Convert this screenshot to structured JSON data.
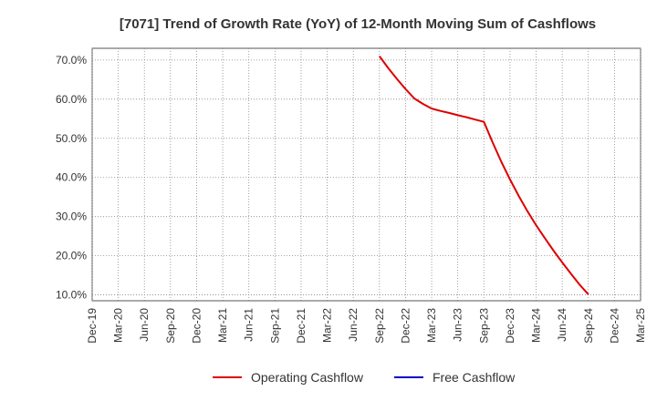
{
  "chart_data": {
    "type": "line",
    "title": "[7071]  Trend of Growth Rate (YoY) of 12-Month Moving Sum of Cashflows",
    "xlabel": "",
    "ylabel": "",
    "x_ticks": [
      "Dec-19",
      "Mar-20",
      "Jun-20",
      "Sep-20",
      "Dec-20",
      "Mar-21",
      "Jun-21",
      "Sep-21",
      "Dec-21",
      "Mar-22",
      "Jun-22",
      "Sep-22",
      "Dec-22",
      "Mar-23",
      "Jun-23",
      "Sep-23",
      "Dec-23",
      "Mar-24",
      "Jun-24",
      "Sep-24",
      "Dec-24",
      "Mar-25"
    ],
    "y_ticks": [
      "10.0%",
      "20.0%",
      "30.0%",
      "40.0%",
      "50.0%",
      "60.0%",
      "70.0%"
    ],
    "y_tick_values": [
      10,
      20,
      30,
      40,
      50,
      60,
      70
    ],
    "ylim": [
      8.5,
      73
    ],
    "xlim": [
      "Dec-19",
      "Mar-25"
    ],
    "grid": true,
    "legend_position": "bottom",
    "series": [
      {
        "name": "Operating Cashflow",
        "color": "#dd0000",
        "points": [
          [
            "Sep-22",
            71.0
          ],
          [
            "Oct-22",
            68.0
          ],
          [
            "Nov-22",
            65.2
          ],
          [
            "Dec-22",
            62.6
          ],
          [
            "Jan-23",
            60.2
          ],
          [
            "Feb-23",
            58.8
          ],
          [
            "Mar-23",
            57.6
          ],
          [
            "Apr-23",
            57.0
          ],
          [
            "May-23",
            56.5
          ],
          [
            "Jun-23",
            55.9
          ],
          [
            "Jul-23",
            55.4
          ],
          [
            "Aug-23",
            54.8
          ],
          [
            "Sep-23",
            54.2
          ],
          [
            "Oct-23",
            49.0
          ],
          [
            "Nov-23",
            44.0
          ],
          [
            "Dec-23",
            39.5
          ],
          [
            "Jan-24",
            35.3
          ],
          [
            "Feb-24",
            31.4
          ],
          [
            "Mar-24",
            27.8
          ],
          [
            "Apr-24",
            24.5
          ],
          [
            "May-24",
            21.3
          ],
          [
            "Jun-24",
            18.3
          ],
          [
            "Jul-24",
            15.4
          ],
          [
            "Aug-24",
            12.6
          ],
          [
            "Sep-24",
            10.1
          ]
        ]
      },
      {
        "name": "Free Cashflow",
        "color": "#0000cc",
        "points": []
      }
    ]
  }
}
